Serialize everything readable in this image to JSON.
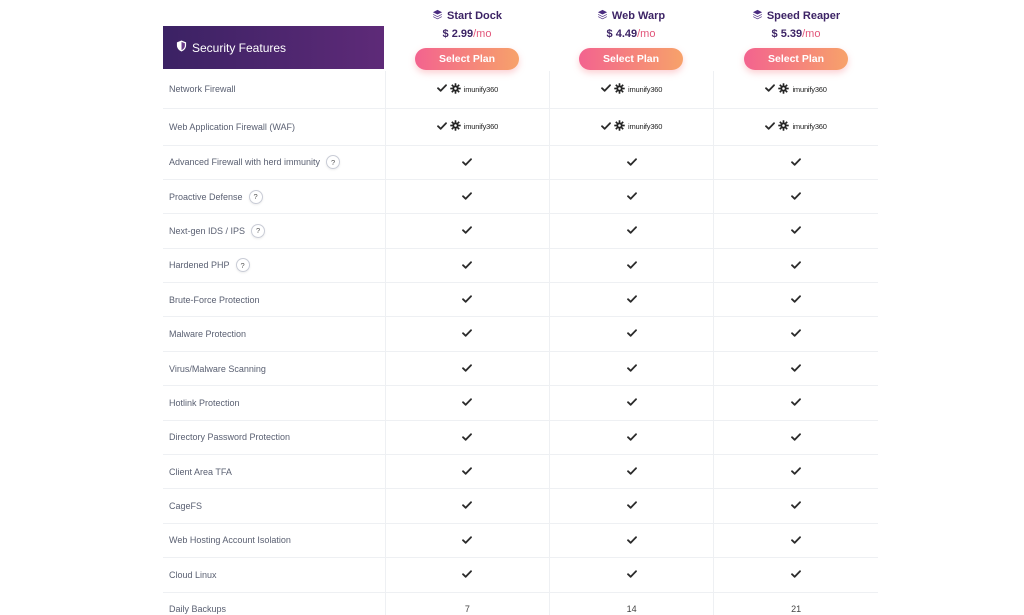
{
  "header": {
    "title": "Security Features"
  },
  "plans": [
    {
      "name": "Start Dock",
      "price": "$ 2.99",
      "period": "/mo",
      "button": "Select Plan"
    },
    {
      "name": "Web Warp",
      "price": "$ 4.49",
      "period": "/mo",
      "button": "Select Plan"
    },
    {
      "name": "Speed Reaper",
      "price": "$ 5.39",
      "period": "/mo",
      "button": "Select Plan"
    }
  ],
  "imunify_label": "imunify360",
  "features": [
    {
      "label": "Network Firewall",
      "help": false,
      "values": [
        "imunify",
        "imunify",
        "imunify"
      ]
    },
    {
      "label": "Web Application Firewall (WAF)",
      "help": false,
      "values": [
        "imunify",
        "imunify",
        "imunify"
      ]
    },
    {
      "label": "Advanced Firewall with herd immunity",
      "help": true,
      "values": [
        "check",
        "check",
        "check"
      ]
    },
    {
      "label": "Proactive Defense",
      "help": true,
      "values": [
        "check",
        "check",
        "check"
      ]
    },
    {
      "label": "Next-gen IDS / IPS",
      "help": true,
      "values": [
        "check",
        "check",
        "check"
      ]
    },
    {
      "label": "Hardened PHP",
      "help": true,
      "values": [
        "check",
        "check",
        "check"
      ]
    },
    {
      "label": "Brute-Force Protection",
      "help": false,
      "values": [
        "check",
        "check",
        "check"
      ]
    },
    {
      "label": "Malware Protection",
      "help": false,
      "values": [
        "check",
        "check",
        "check"
      ]
    },
    {
      "label": "Virus/Malware Scanning",
      "help": false,
      "values": [
        "check",
        "check",
        "check"
      ]
    },
    {
      "label": "Hotlink Protection",
      "help": false,
      "values": [
        "check",
        "check",
        "check"
      ]
    },
    {
      "label": "Directory Password Protection",
      "help": false,
      "values": [
        "check",
        "check",
        "check"
      ]
    },
    {
      "label": "Client Area TFA",
      "help": false,
      "values": [
        "check",
        "check",
        "check"
      ]
    },
    {
      "label": "CageFS",
      "help": false,
      "values": [
        "check",
        "check",
        "check"
      ]
    },
    {
      "label": "Web Hosting Account Isolation",
      "help": false,
      "values": [
        "check",
        "check",
        "check"
      ]
    },
    {
      "label": "Cloud Linux",
      "help": false,
      "values": [
        "check",
        "check",
        "check"
      ]
    },
    {
      "label": "Daily Backups",
      "help": false,
      "values": [
        "7",
        "14",
        "21"
      ]
    }
  ],
  "help_glyph": "?",
  "icons": {
    "shield": "shield-icon",
    "stack": "layers-icon",
    "check": "check-icon",
    "gear": "gear-icon"
  },
  "colors": {
    "primary": "#3d2466",
    "accent": "#e2567a",
    "button_start": "#f3638f",
    "button_end": "#f7a26a"
  }
}
